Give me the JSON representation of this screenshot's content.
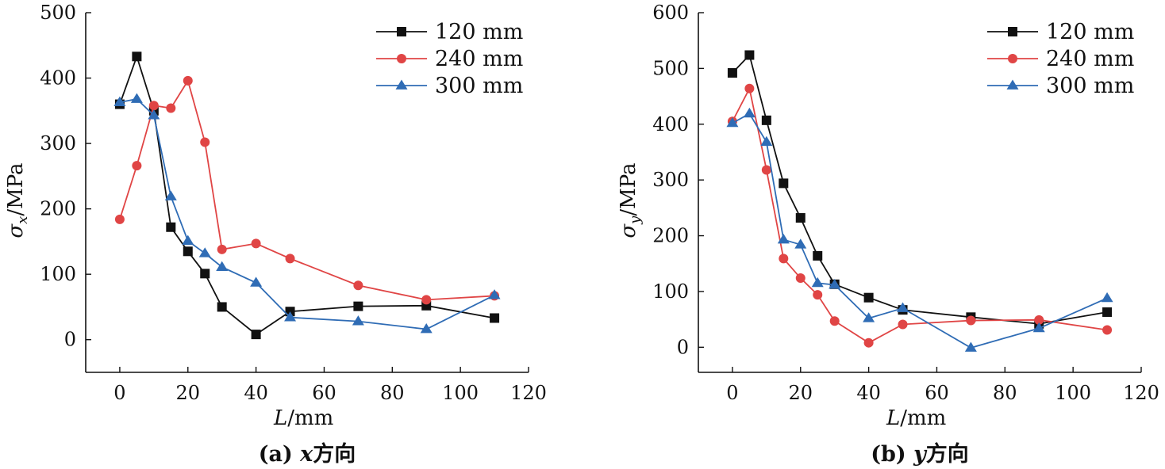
{
  "chart_data": [
    {
      "type": "line",
      "caption": "(a) x方向",
      "xlabel": "L/mm",
      "ylabel": "σx/MPa",
      "xlim": [
        -10,
        120
      ],
      "ylim": [
        -50,
        500
      ],
      "xticks": [
        0,
        20,
        40,
        60,
        80,
        100,
        120
      ],
      "yticks": [
        0,
        100,
        200,
        300,
        400,
        500
      ],
      "legend_position": "top-right",
      "series": [
        {
          "name": "120 mm",
          "color": "#111111",
          "marker": "square",
          "x": [
            0,
            5,
            10,
            15,
            20,
            25,
            30,
            40,
            50,
            70,
            90,
            110
          ],
          "y": [
            360,
            433,
            350,
            172,
            135,
            101,
            50,
            8,
            43,
            51,
            52,
            33
          ]
        },
        {
          "name": "240 mm",
          "color": "#e04545",
          "marker": "circle",
          "x": [
            0,
            5,
            10,
            15,
            20,
            25,
            30,
            40,
            50,
            70,
            90,
            110
          ],
          "y": [
            184,
            266,
            358,
            354,
            396,
            302,
            138,
            147,
            124,
            83,
            61,
            67
          ]
        },
        {
          "name": "300 mm",
          "color": "#2f6cb5",
          "marker": "triangle",
          "x": [
            0,
            5,
            10,
            15,
            20,
            25,
            30,
            40,
            50,
            70,
            90,
            110
          ],
          "y": [
            363,
            368,
            343,
            219,
            151,
            132,
            111,
            87,
            34,
            28,
            16,
            68
          ]
        }
      ]
    },
    {
      "type": "line",
      "caption": "(b) y方向",
      "xlabel": "L/mm",
      "ylabel": "σy/MPa",
      "xlim": [
        -10,
        120
      ],
      "ylim": [
        -45,
        600
      ],
      "xticks": [
        0,
        20,
        40,
        60,
        80,
        100,
        120
      ],
      "yticks": [
        0,
        100,
        200,
        300,
        400,
        500,
        600
      ],
      "legend_position": "top-right",
      "series": [
        {
          "name": "120 mm",
          "color": "#111111",
          "marker": "square",
          "x": [
            0,
            5,
            10,
            15,
            20,
            25,
            30,
            40,
            50,
            70,
            90,
            110
          ],
          "y": [
            492,
            524,
            407,
            294,
            232,
            164,
            113,
            89,
            67,
            54,
            42,
            63
          ]
        },
        {
          "name": "240 mm",
          "color": "#e04545",
          "marker": "circle",
          "x": [
            0,
            5,
            10,
            15,
            20,
            25,
            30,
            40,
            50,
            70,
            90,
            110
          ],
          "y": [
            405,
            464,
            318,
            159,
            124,
            94,
            47,
            8,
            41,
            48,
            49,
            31
          ]
        },
        {
          "name": "300 mm",
          "color": "#2f6cb5",
          "marker": "triangle",
          "x": [
            0,
            5,
            10,
            15,
            20,
            25,
            30,
            40,
            50,
            70,
            90,
            110
          ],
          "y": [
            402,
            419,
            368,
            193,
            184,
            115,
            112,
            52,
            70,
            -1,
            34,
            88
          ]
        }
      ]
    }
  ]
}
